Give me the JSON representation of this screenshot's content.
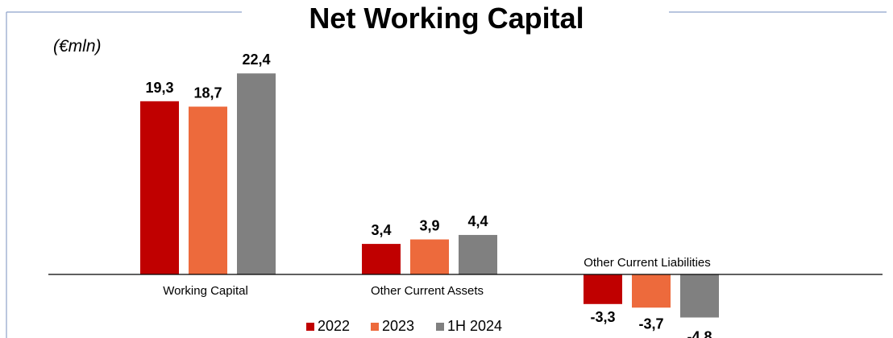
{
  "colors": {
    "2022": "#c00000",
    "2023": "#ed6a3c",
    "1H 2024": "#808080",
    "frame": "#8ea2c9",
    "axis": "#000000"
  },
  "chart_data": {
    "type": "bar",
    "title": "Net Working Capital",
    "unit_label": "(€mln)",
    "categories": [
      "Working Capital",
      "Other Current Assets",
      "Other Current Liabilities"
    ],
    "series": [
      {
        "name": "2022",
        "values": [
          19.3,
          3.4,
          -3.3
        ]
      },
      {
        "name": "2023",
        "values": [
          18.7,
          3.9,
          -3.7
        ]
      },
      {
        "name": "1H 2024",
        "values": [
          22.4,
          4.4,
          -4.8
        ]
      }
    ],
    "data_labels": [
      [
        "19,3",
        "3,4",
        "-3,3"
      ],
      [
        "18,7",
        "3,9",
        "-3,7"
      ],
      [
        "22,4",
        "4,4",
        "-4,8"
      ]
    ],
    "legend": [
      "2022",
      "2023",
      "1H 2024"
    ],
    "legend_position": "bottom",
    "grid": false,
    "ylim": [
      -6,
      23
    ]
  }
}
